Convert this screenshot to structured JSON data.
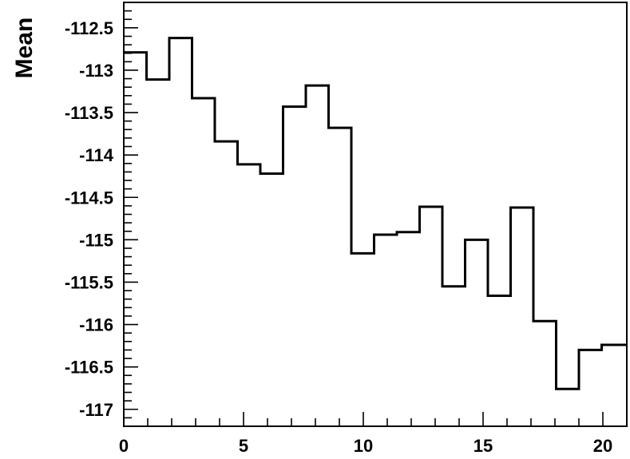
{
  "chart_data": {
    "type": "line",
    "title": "",
    "xlabel": "",
    "ylabel": "Mean",
    "xlim": [
      0,
      21
    ],
    "ylim": [
      -117.2,
      -112.2
    ],
    "grid": false,
    "legend": "none",
    "step_histogram": true,
    "line_color": "#000000",
    "x_ticks": [
      0,
      5,
      10,
      15,
      20
    ],
    "x_tick_labels": [
      "0",
      "5",
      "10",
      "15",
      "20"
    ],
    "y_ticks": [
      -112.5,
      -113,
      -113.5,
      -114,
      -114.5,
      -115,
      -115.5,
      -116,
      -116.5,
      -117
    ],
    "y_tick_labels": [
      "-112.5",
      "-113",
      "-113.5",
      "-114",
      "-114.5",
      "-115",
      "-115.5",
      "-116",
      "-116.5",
      "-117"
    ],
    "bin_edges": [
      0,
      0.95,
      1.9,
      2.85,
      3.8,
      4.75,
      5.7,
      6.65,
      7.6,
      8.55,
      9.5,
      10.45,
      11.4,
      12.35,
      13.3,
      14.25,
      15.2,
      16.15,
      17.1,
      18.05,
      19.0,
      19.95,
      21
    ],
    "values": [
      -112.79,
      -113.11,
      -112.62,
      -113.33,
      -113.84,
      -114.11,
      -114.22,
      -113.43,
      -113.18,
      -113.68,
      -115.16,
      -114.94,
      -114.91,
      -114.61,
      -115.55,
      -115.0,
      -115.66,
      -114.62,
      -115.96,
      -116.76,
      -116.3,
      -116.24
    ]
  }
}
